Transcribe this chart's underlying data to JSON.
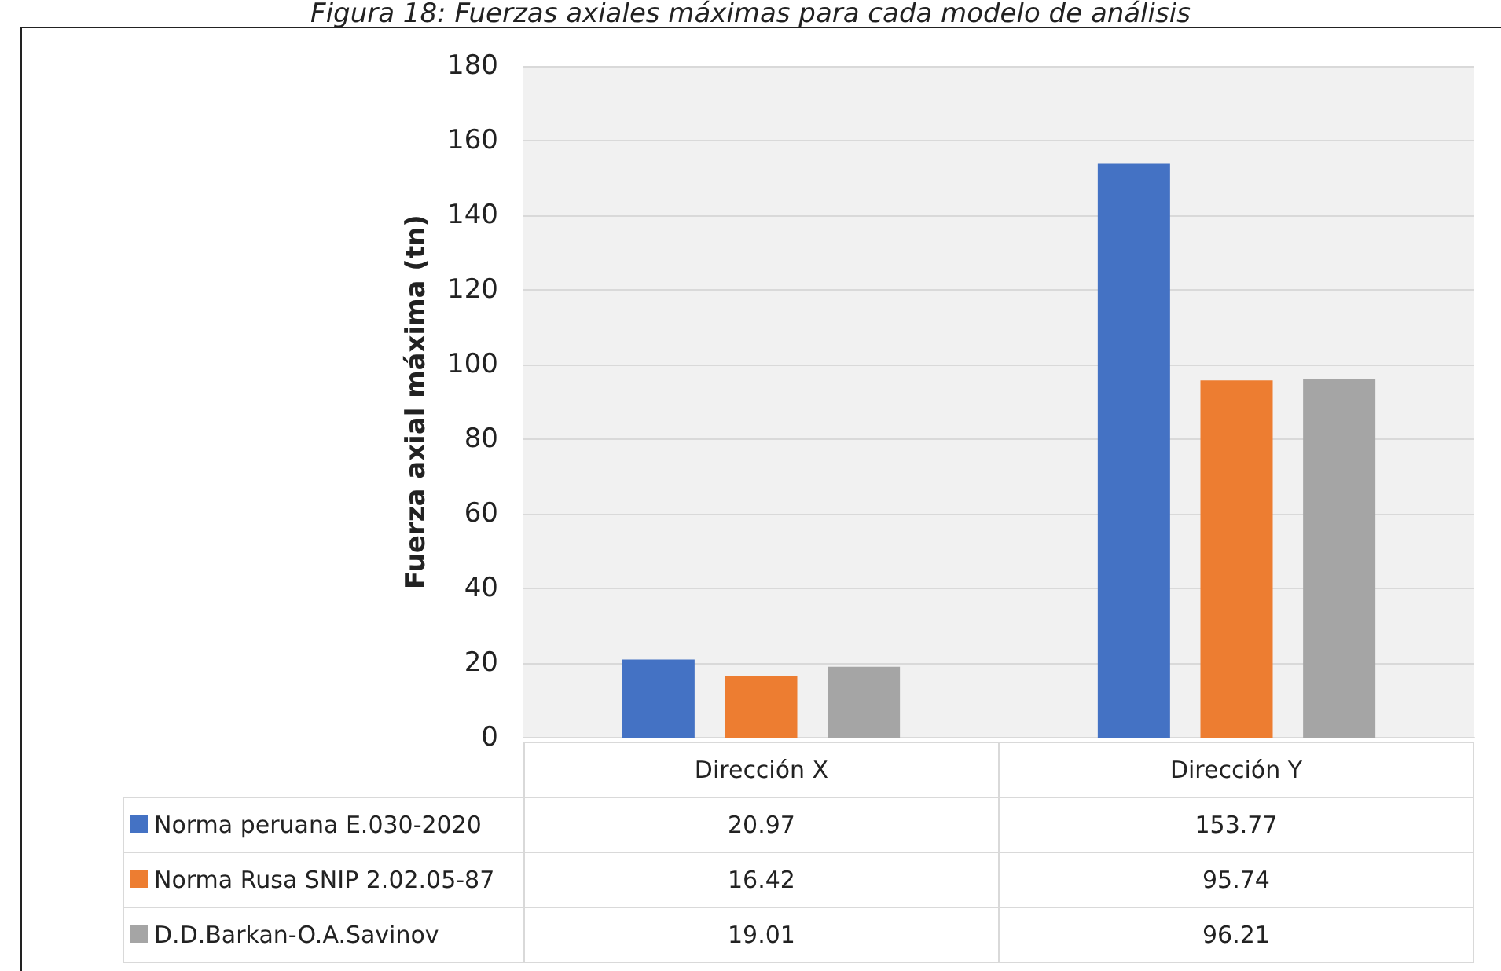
{
  "chart_data": {
    "type": "bar",
    "title": "Figura 18: Fuerzas axiales máximas para cada modelo de análisis",
    "ylabel": "Fuerza axial máxima (tn)",
    "categories": [
      "Dirección X",
      "Dirección Y"
    ],
    "series": [
      {
        "name": "Norma peruana E.030-2020",
        "color": "#4472c4",
        "values": [
          20.97,
          153.77
        ]
      },
      {
        "name": "Norma Rusa SNIP 2.02.05-87",
        "color": "#ed7d31",
        "values": [
          16.42,
          95.74
        ]
      },
      {
        "name": "D.D.Barkan-O.A.Savinov",
        "color": "#a5a5a5",
        "values": [
          19.01,
          96.21
        ]
      }
    ],
    "ylim": [
      0,
      180
    ],
    "yticks": [
      0,
      20,
      40,
      60,
      80,
      100,
      120,
      140,
      160,
      180
    ],
    "grid": "y",
    "legend": "bottom",
    "data_labels": true
  }
}
